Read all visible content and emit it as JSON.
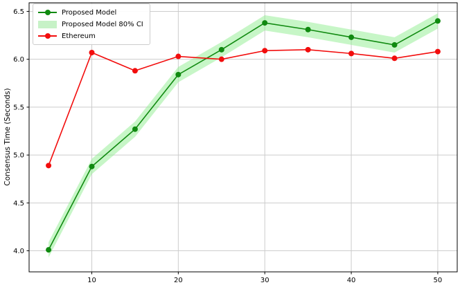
{
  "chart_data": {
    "type": "line",
    "title": "",
    "xlabel": "",
    "ylabel": "Consensus Time (Seconds)",
    "x": [
      5,
      10,
      15,
      20,
      25,
      30,
      35,
      40,
      45,
      50
    ],
    "series": [
      {
        "name": "Proposed Model",
        "color": "#108a10",
        "marker": "circle",
        "values": [
          4.01,
          4.88,
          5.27,
          5.84,
          6.1,
          6.38,
          6.31,
          6.23,
          6.15,
          6.4
        ]
      },
      {
        "name": "Ethereum",
        "color": "#f20d0d",
        "marker": "circle",
        "values": [
          4.89,
          6.07,
          5.88,
          6.03,
          6.0,
          6.09,
          6.1,
          6.06,
          6.01,
          6.08
        ]
      }
    ],
    "ci_band": {
      "label": "Proposed Model 80% CI",
      "series": "Proposed Model",
      "halfwidth": 0.08,
      "color": "#90ee90",
      "opacity": 0.5
    },
    "xlim": [
      2.75,
      52.25
    ],
    "ylim": [
      3.78,
      6.59
    ],
    "xticks": [
      {
        "value": 10,
        "label": "10"
      },
      {
        "value": 20,
        "label": "20"
      },
      {
        "value": 30,
        "label": "30"
      },
      {
        "value": 40,
        "label": "40"
      },
      {
        "value": 50,
        "label": "50"
      }
    ],
    "yticks": [
      {
        "value": 4.0,
        "label": "4.0"
      },
      {
        "value": 4.5,
        "label": "4.5"
      },
      {
        "value": 5.0,
        "label": "5.0"
      },
      {
        "value": 5.5,
        "label": "5.5"
      },
      {
        "value": 6.0,
        "label": "6.0"
      },
      {
        "value": 6.5,
        "label": "6.5"
      }
    ],
    "grid": true,
    "grid_color": "#cccccc",
    "spine_color": "#000000",
    "background_color": "#ffffff",
    "legend": {
      "position": "upper-left",
      "entries": [
        {
          "label": "Proposed Model",
          "type": "line-marker",
          "color": "#108a10"
        },
        {
          "label": "Proposed Model 80% CI",
          "type": "patch",
          "color": "#c7f2c7"
        },
        {
          "label": "Ethereum",
          "type": "line-marker",
          "color": "#f20d0d"
        }
      ]
    }
  }
}
